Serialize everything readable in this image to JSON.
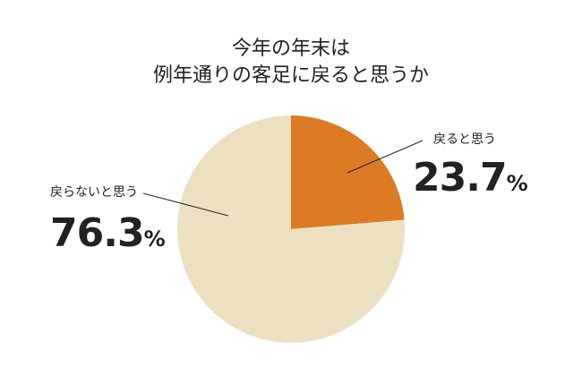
{
  "chart_data": {
    "type": "pie",
    "title_line1": "今年の年末は",
    "title_line2": "例年通りの客足に戻ると思うか",
    "slices": [
      {
        "label": "戻ると思う",
        "value": 23.7,
        "value_text": "23.7",
        "unit": "%",
        "color": "#dd7b25"
      },
      {
        "label": "戻らないと思う",
        "value": 76.3,
        "value_text": "76.3",
        "unit": "%",
        "color": "#ede0c1"
      }
    ]
  }
}
